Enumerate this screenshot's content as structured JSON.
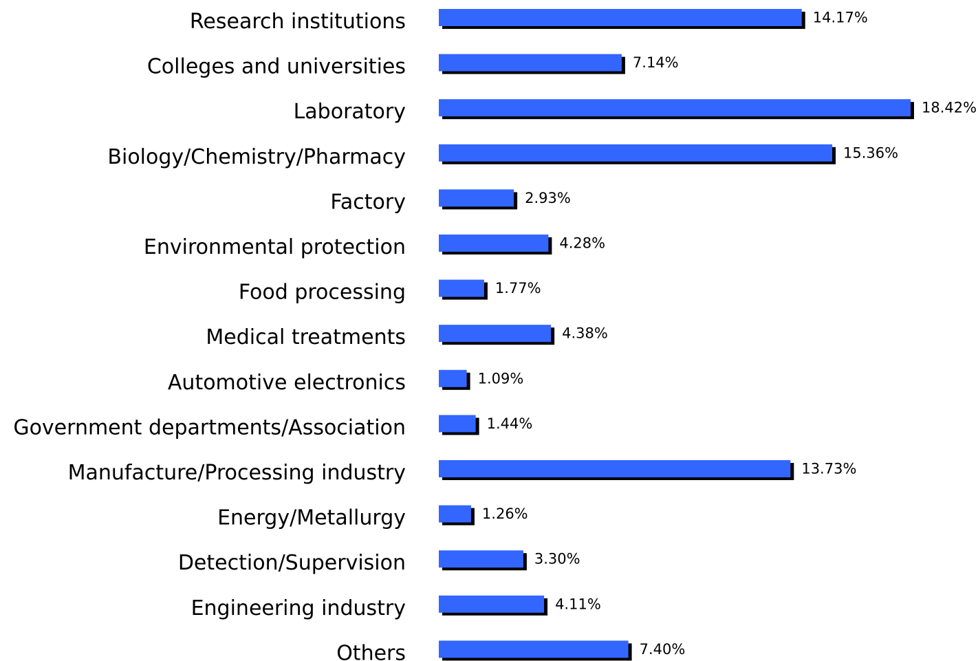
{
  "chart_data": {
    "type": "barh",
    "categories": [
      "Research institutions",
      "Colleges and universities",
      "Laboratory",
      "Biology/Chemistry/Pharmacy",
      "Factory",
      "Environmental protection",
      "Food processing",
      "Medical treatments",
      "Automotive electronics",
      "Government departments/Association",
      "Manufacture/Processing industry",
      "Energy/Metallurgy",
      "Detection/Supervision",
      "Engineering industry",
      "Others"
    ],
    "values": [
      14.17,
      7.14,
      18.42,
      15.36,
      2.93,
      4.28,
      1.77,
      4.38,
      1.09,
      1.44,
      13.73,
      1.26,
      3.3,
      4.11,
      7.4
    ],
    "value_labels": [
      "14.17%",
      "7.14%",
      "18.42%",
      "15.36%",
      "2.93%",
      "4.28%",
      "1.77%",
      "4.38%",
      "1.09%",
      "1.44%",
      "13.73%",
      "1.26%",
      "3.30%",
      "4.11%",
      "7.40%"
    ],
    "color": "#3366ff"
  }
}
